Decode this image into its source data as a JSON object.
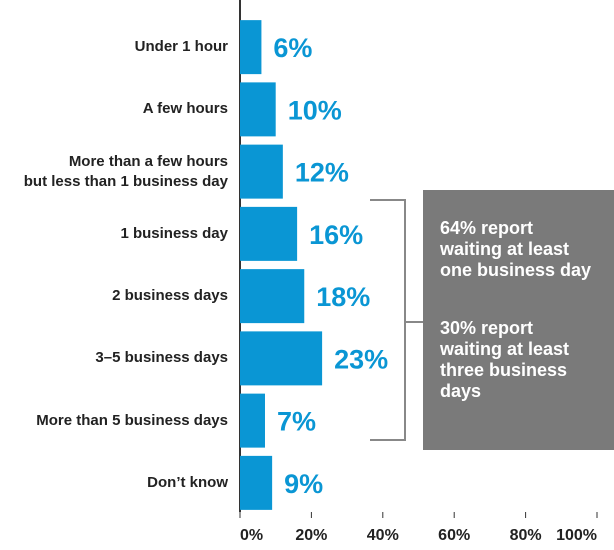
{
  "chart_data": {
    "type": "hbar",
    "categories": [
      "Under 1 hour",
      "A few hours",
      "More than a few hours\nbut less than 1 business day",
      "1 business day",
      "2 business days",
      "3–5 business days",
      "More than 5 business days",
      "Don’t know"
    ],
    "values": [
      6,
      10,
      12,
      16,
      18,
      23,
      7,
      9
    ],
    "value_labels": [
      "6%",
      "10%",
      "12%",
      "16%",
      "18%",
      "23%",
      "7%",
      "9%"
    ],
    "color": "#0a96d4",
    "xlim": [
      0,
      100
    ],
    "xticks": [
      {
        "value": 0,
        "label": "0%"
      },
      {
        "value": 20,
        "label": "20%"
      },
      {
        "value": 40,
        "label": "40%"
      },
      {
        "value": 60,
        "label": "60%"
      },
      {
        "value": 80,
        "label": "80%"
      },
      {
        "value": 100,
        "label": "100%"
      }
    ],
    "annotations": [
      "64% report\nwaiting at least\none business day",
      "30% report\nwaiting at least\nthree business\ndays"
    ]
  }
}
